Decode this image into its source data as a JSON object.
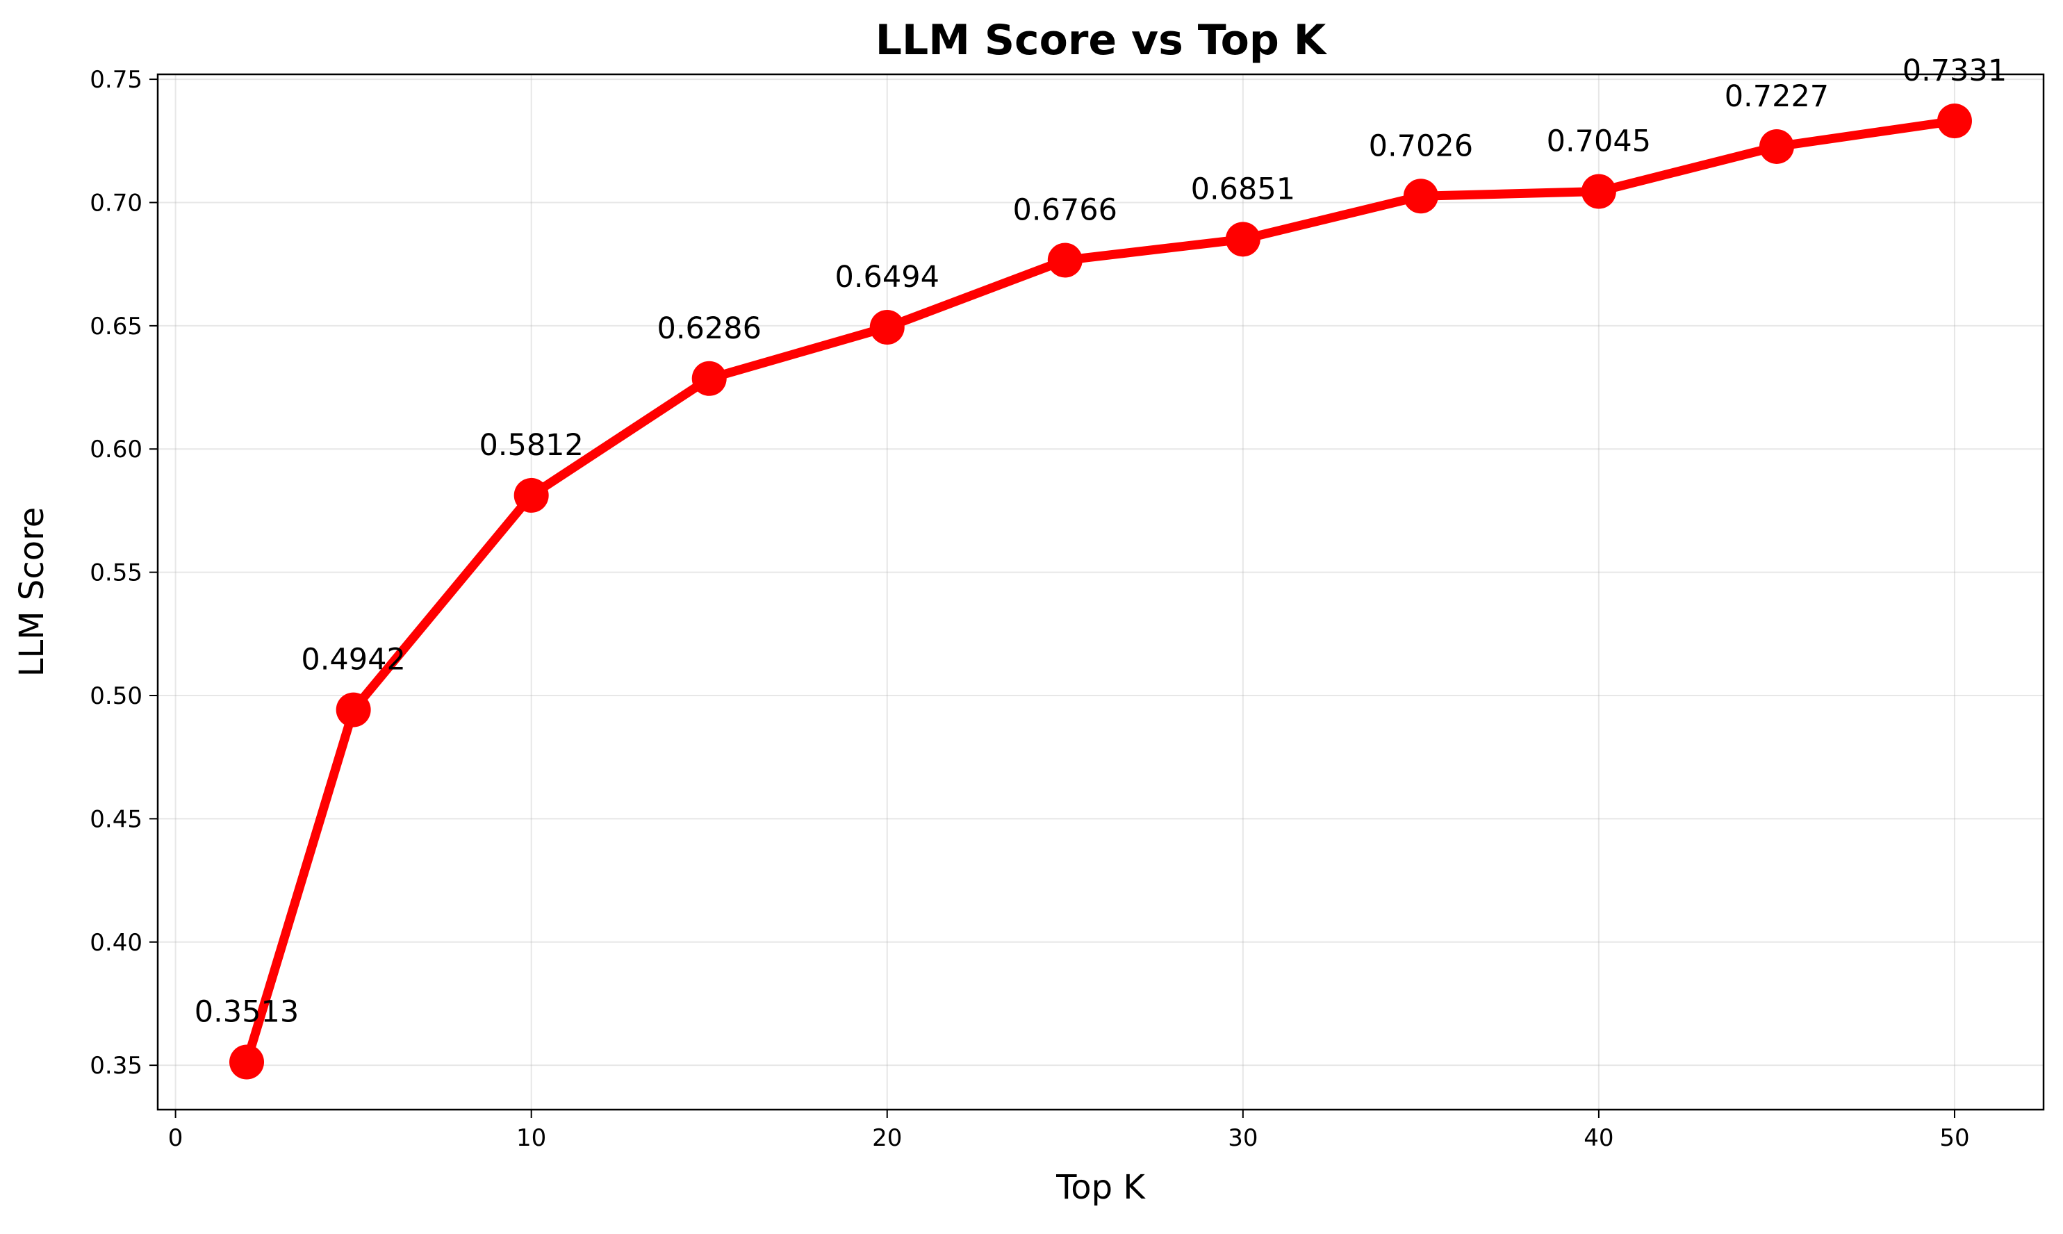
{
  "chart_data": {
    "type": "line",
    "title": "LLM Score vs Top K",
    "xlabel": "Top K",
    "ylabel": "LLM Score",
    "xlim": [
      -0.5,
      52.5
    ],
    "ylim": [
      0.332,
      0.752
    ],
    "xticks": [
      0,
      10,
      20,
      30,
      40,
      50
    ],
    "yticks": [
      0.35,
      0.4,
      0.45,
      0.5,
      0.55,
      0.6,
      0.65,
      0.7,
      0.75
    ],
    "xtick_labels": [
      "0",
      "10",
      "20",
      "30",
      "40",
      "50"
    ],
    "ytick_labels": [
      "0.35",
      "0.40",
      "0.45",
      "0.50",
      "0.55",
      "0.60",
      "0.65",
      "0.70",
      "0.75"
    ],
    "grid": true,
    "series": [
      {
        "color": "#ff0000",
        "marker": "circle",
        "x": [
          2,
          5,
          10,
          15,
          20,
          25,
          30,
          35,
          40,
          45,
          50
        ],
        "y": [
          0.3513,
          0.4942,
          0.5812,
          0.6286,
          0.6494,
          0.6766,
          0.6851,
          0.7026,
          0.7045,
          0.7227,
          0.7331
        ],
        "labels": [
          "0.3513",
          "0.4942",
          "0.5812",
          "0.6286",
          "0.6494",
          "0.6766",
          "0.6851",
          "0.7026",
          "0.7045",
          "0.7227",
          "0.7331"
        ]
      }
    ]
  }
}
